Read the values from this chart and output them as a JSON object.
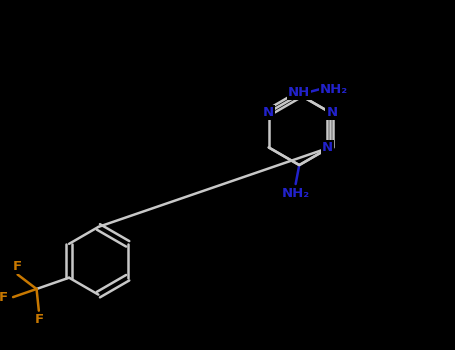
{
  "bg_color": "#000000",
  "lc": "#c8c8c8",
  "Nc": "#2222cc",
  "Fc": "#c87800",
  "lw": 1.8,
  "fs": 9.5,
  "xlim": [
    0,
    10
  ],
  "ylim": [
    0,
    7.7
  ]
}
